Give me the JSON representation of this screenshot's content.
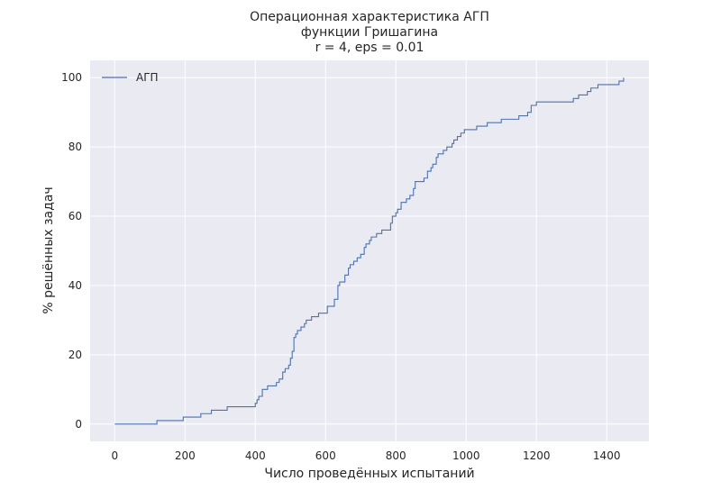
{
  "colors": {
    "plot_background": "#eaeaf2",
    "grid": "#ffffff",
    "series": "#4c72b0",
    "text": "#262626"
  },
  "chart_data": {
    "type": "line",
    "title_lines": [
      "Операционная характеристика АГП",
      "функции Гришагина",
      "r = 4, eps = 0.01"
    ],
    "xlabel": "Число проведённых испытаний",
    "ylabel": "% решённых задач",
    "xlim": [
      -70,
      1520
    ],
    "ylim": [
      -5,
      105
    ],
    "xticks": [
      0,
      200,
      400,
      600,
      800,
      1000,
      1200,
      1400
    ],
    "xtick_labels": [
      "0",
      "200",
      "400",
      "600",
      "800",
      "1000",
      "1200",
      "1400"
    ],
    "yticks": [
      0,
      20,
      40,
      60,
      80,
      100
    ],
    "ytick_labels": [
      "0",
      "20",
      "40",
      "60",
      "80",
      "100"
    ],
    "grid": true,
    "legend_position": "top-left",
    "step": "post",
    "series": [
      {
        "name": "АГП",
        "points": [
          [
            0,
            0
          ],
          [
            120,
            1
          ],
          [
            195,
            2
          ],
          [
            245,
            3
          ],
          [
            275,
            4
          ],
          [
            320,
            5
          ],
          [
            400,
            6
          ],
          [
            405,
            7
          ],
          [
            410,
            8
          ],
          [
            420,
            10
          ],
          [
            435,
            11
          ],
          [
            460,
            12
          ],
          [
            468,
            13
          ],
          [
            478,
            15
          ],
          [
            485,
            16
          ],
          [
            495,
            17
          ],
          [
            500,
            19
          ],
          [
            505,
            21
          ],
          [
            510,
            25
          ],
          [
            515,
            26
          ],
          [
            520,
            27
          ],
          [
            530,
            28
          ],
          [
            540,
            29
          ],
          [
            545,
            30
          ],
          [
            555,
            30
          ],
          [
            560,
            31
          ],
          [
            580,
            32
          ],
          [
            605,
            34
          ],
          [
            618,
            34
          ],
          [
            625,
            36
          ],
          [
            635,
            40
          ],
          [
            640,
            41
          ],
          [
            655,
            43
          ],
          [
            665,
            45
          ],
          [
            670,
            46
          ],
          [
            680,
            47
          ],
          [
            690,
            48
          ],
          [
            700,
            49
          ],
          [
            710,
            51
          ],
          [
            715,
            52
          ],
          [
            725,
            53
          ],
          [
            730,
            54
          ],
          [
            745,
            55
          ],
          [
            760,
            56
          ],
          [
            782,
            56
          ],
          [
            785,
            58
          ],
          [
            790,
            60
          ],
          [
            800,
            61
          ],
          [
            805,
            62
          ],
          [
            815,
            64
          ],
          [
            830,
            65
          ],
          [
            840,
            66
          ],
          [
            850,
            68
          ],
          [
            855,
            70
          ],
          [
            880,
            71
          ],
          [
            890,
            73
          ],
          [
            900,
            74
          ],
          [
            905,
            75
          ],
          [
            915,
            77
          ],
          [
            920,
            78
          ],
          [
            935,
            79
          ],
          [
            945,
            80
          ],
          [
            960,
            81
          ],
          [
            965,
            82
          ],
          [
            975,
            83
          ],
          [
            985,
            84
          ],
          [
            995,
            85
          ],
          [
            1030,
            86
          ],
          [
            1060,
            87
          ],
          [
            1100,
            88
          ],
          [
            1150,
            89
          ],
          [
            1175,
            90
          ],
          [
            1185,
            92
          ],
          [
            1200,
            93
          ],
          [
            1305,
            94
          ],
          [
            1320,
            95
          ],
          [
            1345,
            96
          ],
          [
            1355,
            97
          ],
          [
            1375,
            98
          ],
          [
            1435,
            99
          ],
          [
            1448,
            100
          ]
        ]
      }
    ]
  }
}
